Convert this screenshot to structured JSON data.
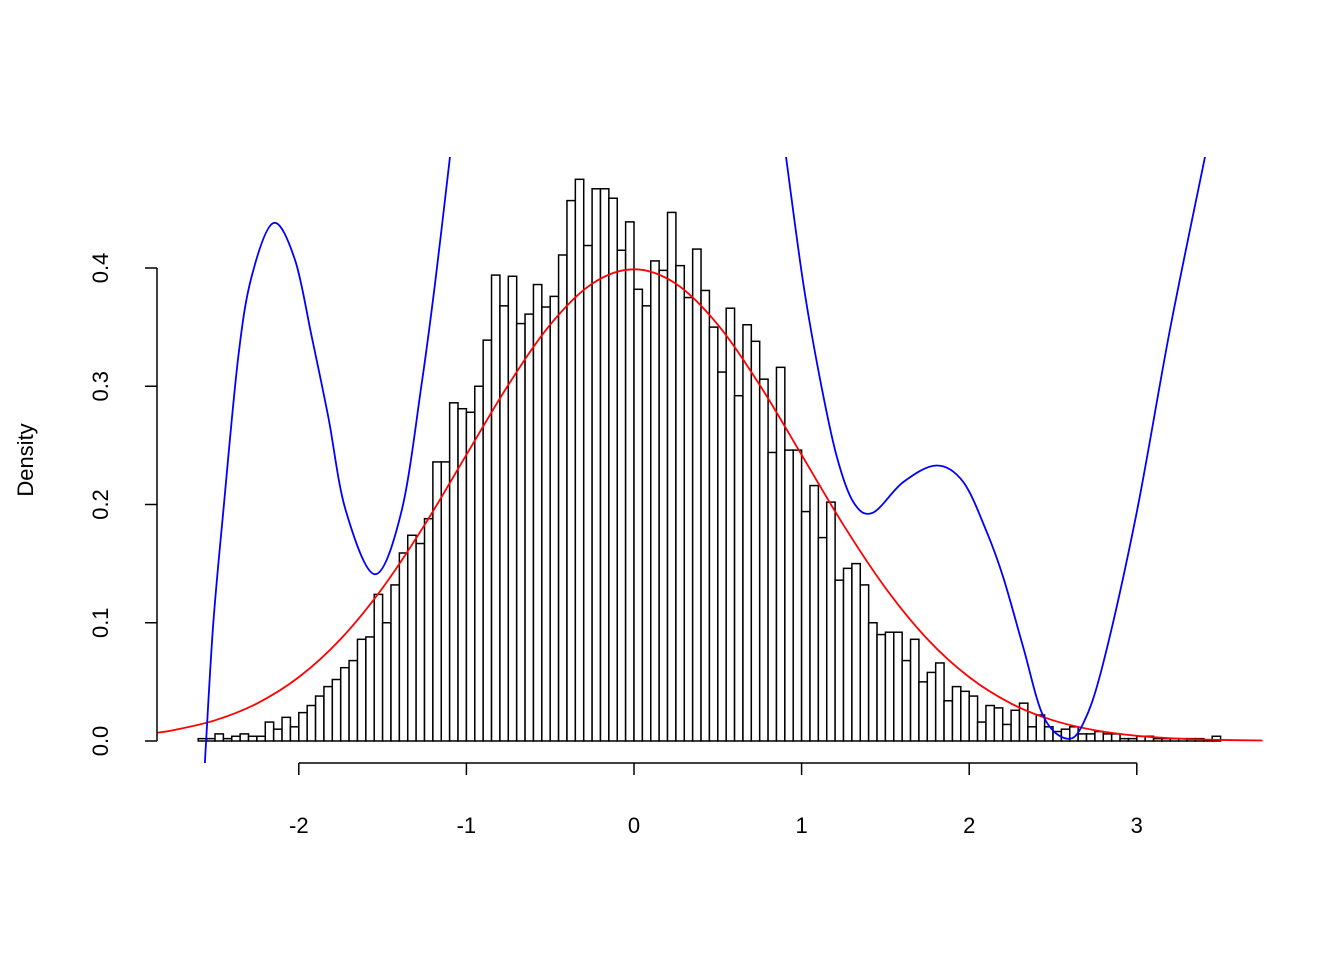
{
  "chart_data": {
    "type": "bar",
    "subtype": "histogram with overlaid density curves",
    "title": "",
    "xlabel": "",
    "ylabel": "Density",
    "xlim": [
      -2.85,
      3.75
    ],
    "ylim": [
      -0.019,
      0.494
    ],
    "grid": false,
    "legend": "none",
    "x_ticks": [
      "-2",
      "-1",
      "0",
      "1",
      "2",
      "3"
    ],
    "x_tick_values": [
      -2,
      -1,
      0,
      1,
      2,
      3
    ],
    "y_ticks": [
      "0.0",
      "0.1",
      "0.2",
      "0.3",
      "0.4"
    ],
    "y_tick_values": [
      0,
      0.1,
      0.2,
      0.3,
      0.4
    ],
    "histogram": {
      "bin_start": -2.6,
      "bin_width": 0.05,
      "fill": "#ffffff",
      "border": "#000000",
      "values": [
        0.002,
        0.002,
        0.006,
        0.002,
        0.004,
        0.006,
        0.004,
        0.004,
        0.016,
        0.01,
        0.02,
        0.012,
        0.024,
        0.03,
        0.038,
        0.046,
        0.052,
        0.062,
        0.068,
        0.086,
        0.088,
        0.124,
        0.1,
        0.132,
        0.159,
        0.174,
        0.167,
        0.188,
        0.236,
        0.236,
        0.286,
        0.281,
        0.278,
        0.3,
        0.339,
        0.394,
        0.368,
        0.393,
        0.353,
        0.361,
        0.386,
        0.367,
        0.376,
        0.411,
        0.457,
        0.475,
        0.419,
        0.467,
        0.467,
        0.459,
        0.415,
        0.439,
        0.382,
        0.368,
        0.406,
        0.398,
        0.447,
        0.402,
        0.375,
        0.416,
        0.381,
        0.35,
        0.312,
        0.366,
        0.292,
        0.352,
        0.338,
        0.306,
        0.244,
        0.316,
        0.246,
        0.246,
        0.194,
        0.216,
        0.172,
        0.202,
        0.136,
        0.146,
        0.15,
        0.132,
        0.1,
        0.09,
        0.092,
        0.092,
        0.068,
        0.086,
        0.05,
        0.058,
        0.066,
        0.034,
        0.046,
        0.042,
        0.038,
        0.016,
        0.03,
        0.028,
        0.014,
        0.026,
        0.032,
        0.012,
        0.022,
        0.012,
        0.008,
        0.01,
        0.012,
        0.006,
        0.006,
        0.008,
        0.006,
        0.006,
        0.002,
        0.002,
        0.004,
        0.004,
        0.002,
        0.002,
        0.002,
        0.002,
        0.002,
        0.002,
        0.001,
        0.004
      ]
    },
    "series": [
      {
        "type": "line",
        "color": "#ff0000",
        "x": [
          -2.85,
          -2.75,
          -2.5,
          -2.25,
          -2.0,
          -1.75,
          -1.5,
          -1.25,
          -1.0,
          -0.75,
          -0.5,
          -0.25,
          0,
          0.25,
          0.5,
          0.75,
          1.0,
          1.25,
          1.5,
          1.75,
          2.0,
          2.25,
          2.5,
          2.75,
          3.0,
          3.25,
          3.5,
          3.75
        ],
        "y": [
          0.0069,
          0.0091,
          0.0175,
          0.0317,
          0.054,
          0.0863,
          0.1295,
          0.1826,
          0.242,
          0.3011,
          0.3521,
          0.3867,
          0.3989,
          0.3867,
          0.3521,
          0.3011,
          0.242,
          0.1826,
          0.1295,
          0.0863,
          0.054,
          0.0317,
          0.0175,
          0.0091,
          0.0044,
          0.002,
          0.0009,
          0.0004
        ]
      },
      {
        "type": "line",
        "color": "#0000ff",
        "x": [
          -2.56,
          -2.553,
          -2.51,
          -2.45,
          -2.361,
          -2.281,
          -2.152,
          -2.023,
          -1.923,
          -1.824,
          -1.72,
          -1.545,
          -1.386,
          -1.267,
          -1.187,
          -1.098,
          0.907,
          1.01,
          1.11,
          1.209,
          1.309,
          1.424,
          1.607,
          1.806,
          1.965,
          2.104,
          2.204,
          2.323,
          2.442,
          2.582,
          2.681,
          2.8,
          2.999,
          3.198,
          3.407
        ],
        "y": [
          -0.019,
          0.0,
          0.1,
          0.195,
          0.325,
          0.393,
          0.438,
          0.407,
          0.342,
          0.274,
          0.195,
          0.141,
          0.195,
          0.302,
          0.387,
          0.494,
          0.494,
          0.387,
          0.306,
          0.241,
          0.202,
          0.193,
          0.219,
          0.233,
          0.219,
          0.177,
          0.138,
          0.079,
          0.021,
          0.002,
          0.015,
          0.066,
          0.193,
          0.348,
          0.494
        ]
      }
    ]
  }
}
